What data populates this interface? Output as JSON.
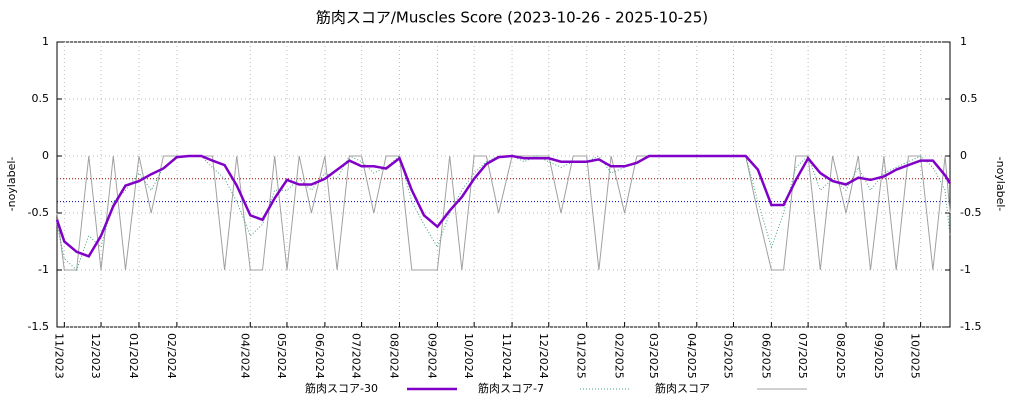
{
  "chart_data": {
    "type": "line",
    "title": "筋肉スコア/Muscles Score (2023-10-26 - 2025-10-25)",
    "ylabel": "-noylabel-",
    "y2label": "-noylabel-",
    "xlim": [
      "2023-10-26",
      "2025-10-25"
    ],
    "xticks": [
      {
        "value": "2023-11-01",
        "label": "11/2023"
      },
      {
        "value": "2023-12-01",
        "label": "12/2023"
      },
      {
        "value": "2024-01-01",
        "label": "01/2024"
      },
      {
        "value": "2024-02-01",
        "label": "02/2024"
      },
      {
        "value": "2024-04-01",
        "label": "04/2024"
      },
      {
        "value": "2024-05-01",
        "label": "05/2024"
      },
      {
        "value": "2024-06-01",
        "label": "06/2024"
      },
      {
        "value": "2024-07-01",
        "label": "07/2024"
      },
      {
        "value": "2024-08-01",
        "label": "08/2024"
      },
      {
        "value": "2024-09-01",
        "label": "09/2024"
      },
      {
        "value": "2024-10-01",
        "label": "10/2024"
      },
      {
        "value": "2024-11-01",
        "label": "11/2024"
      },
      {
        "value": "2024-12-01",
        "label": "12/2024"
      },
      {
        "value": "2025-01-01",
        "label": "01/2025"
      },
      {
        "value": "2025-02-01",
        "label": "02/2025"
      },
      {
        "value": "2025-03-01",
        "label": "03/2025"
      },
      {
        "value": "2025-04-01",
        "label": "04/2025"
      },
      {
        "value": "2025-05-01",
        "label": "05/2025"
      },
      {
        "value": "2025-06-01",
        "label": "06/2025"
      },
      {
        "value": "2025-07-01",
        "label": "07/2025"
      },
      {
        "value": "2025-08-01",
        "label": "08/2025"
      },
      {
        "value": "2025-09-01",
        "label": "09/2025"
      },
      {
        "value": "2025-10-01",
        "label": "10/2025"
      }
    ],
    "ylim": [
      -1.5,
      1
    ],
    "yticks": [
      1,
      0.5,
      0,
      -0.5,
      -1,
      -1.5
    ],
    "y2lim": [
      -1.5,
      1
    ],
    "y2ticks": [
      1,
      0.5,
      0,
      -0.5,
      -1,
      -1.5
    ],
    "grid": true,
    "hlines": [
      {
        "value": -0.2,
        "color": "#a00000"
      },
      {
        "value": -0.4,
        "color": "#0000c0"
      }
    ],
    "x": [
      "2023-10-26",
      "2023-11-01",
      "2023-11-11",
      "2023-11-21",
      "2023-12-01",
      "2023-12-11",
      "2023-12-21",
      "2024-01-01",
      "2024-01-11",
      "2024-01-21",
      "2024-02-01",
      "2024-02-11",
      "2024-02-21",
      "2024-03-01",
      "2024-03-11",
      "2024-03-21",
      "2024-04-01",
      "2024-04-11",
      "2024-04-21",
      "2024-05-01",
      "2024-05-11",
      "2024-05-21",
      "2024-06-01",
      "2024-06-11",
      "2024-06-21",
      "2024-07-01",
      "2024-07-11",
      "2024-07-21",
      "2024-08-01",
      "2024-08-11",
      "2024-08-21",
      "2024-09-01",
      "2024-09-11",
      "2024-09-21",
      "2024-10-01",
      "2024-10-11",
      "2024-10-21",
      "2024-11-01",
      "2024-11-11",
      "2024-11-21",
      "2024-12-01",
      "2024-12-11",
      "2024-12-21",
      "2025-01-01",
      "2025-01-11",
      "2025-01-21",
      "2025-02-01",
      "2025-02-11",
      "2025-02-21",
      "2025-03-01",
      "2025-03-11",
      "2025-03-21",
      "2025-04-01",
      "2025-04-11",
      "2025-04-21",
      "2025-05-01",
      "2025-05-11",
      "2025-05-21",
      "2025-06-01",
      "2025-06-11",
      "2025-06-21",
      "2025-07-01",
      "2025-07-11",
      "2025-07-21",
      "2025-08-01",
      "2025-08-11",
      "2025-08-21",
      "2025-09-01",
      "2025-09-11",
      "2025-09-21",
      "2025-10-01",
      "2025-10-11",
      "2025-10-21",
      "2025-10-25"
    ],
    "series": [
      {
        "name": "筋肉スコア",
        "color": "#a0a0a0",
        "width": 1,
        "dash": "",
        "values": [
          -0.5,
          -1,
          -1,
          0,
          -1,
          0,
          -1,
          0,
          -0.5,
          0,
          0,
          0,
          0,
          0,
          -1,
          0,
          -1,
          -1,
          0,
          -1,
          0,
          -0.5,
          0,
          -1,
          0,
          0,
          -0.5,
          0,
          0,
          -1,
          -1,
          -1,
          0,
          -1,
          0,
          0,
          -0.5,
          0,
          0,
          0,
          0,
          -0.5,
          0,
          0,
          -1,
          0,
          -0.5,
          0,
          0,
          0,
          0,
          0,
          0,
          0,
          0,
          0,
          0,
          -0.5,
          -1,
          -1,
          0,
          0,
          -1,
          0,
          -0.5,
          0,
          -1,
          0,
          -1,
          0,
          0,
          -1,
          0,
          -0.5
        ]
      },
      {
        "name": "筋肉スコア-7",
        "color": "#40a080",
        "width": 1,
        "dash": "1,2",
        "values": [
          -0.6,
          -0.9,
          -1,
          -0.7,
          -0.8,
          -0.4,
          -0.3,
          -0.15,
          -0.3,
          -0.1,
          0,
          0,
          0,
          -0.1,
          -0.2,
          -0.4,
          -0.7,
          -0.6,
          -0.3,
          -0.3,
          -0.2,
          -0.3,
          -0.15,
          -0.2,
          0,
          -0.05,
          -0.15,
          -0.1,
          0,
          -0.4,
          -0.6,
          -0.8,
          -0.5,
          -0.3,
          -0.15,
          -0.05,
          0,
          0,
          -0.05,
          0,
          -0.05,
          -0.1,
          -0.05,
          -0.05,
          0,
          -0.15,
          -0.1,
          -0.05,
          0,
          0,
          0,
          0,
          0,
          0,
          0,
          0,
          0,
          -0.4,
          -0.8,
          -0.5,
          -0.1,
          0,
          -0.3,
          -0.2,
          -0.3,
          -0.1,
          -0.3,
          -0.15,
          -0.1,
          -0.05,
          0,
          -0.1,
          -0.3,
          -0.7
        ]
      },
      {
        "name": "筋肉スコア-30",
        "color": "#8000c8",
        "width": 2.5,
        "dash": "",
        "values": [
          -0.56,
          -0.75,
          -0.84,
          -0.88,
          -0.7,
          -0.44,
          -0.26,
          -0.22,
          -0.16,
          -0.11,
          -0.01,
          0,
          0,
          -0.04,
          -0.08,
          -0.26,
          -0.52,
          -0.56,
          -0.37,
          -0.21,
          -0.25,
          -0.25,
          -0.2,
          -0.12,
          -0.04,
          -0.09,
          -0.09,
          -0.11,
          -0.02,
          -0.3,
          -0.52,
          -0.62,
          -0.48,
          -0.36,
          -0.2,
          -0.07,
          -0.01,
          0,
          -0.02,
          -0.02,
          -0.02,
          -0.05,
          -0.05,
          -0.05,
          -0.03,
          -0.09,
          -0.09,
          -0.06,
          0,
          0,
          0,
          0,
          0,
          0,
          0,
          0,
          0,
          -0.12,
          -0.43,
          -0.43,
          -0.21,
          -0.02,
          -0.15,
          -0.22,
          -0.25,
          -0.19,
          -0.21,
          -0.18,
          -0.12,
          -0.08,
          -0.04,
          -0.04,
          -0.17,
          -0.24
        ]
      }
    ]
  }
}
